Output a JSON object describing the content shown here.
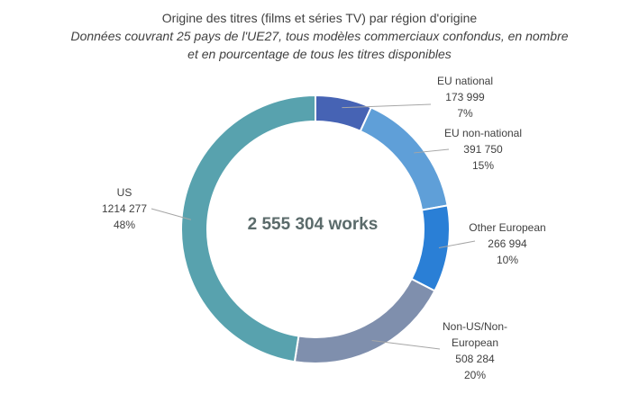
{
  "chart_data": {
    "type": "pie",
    "variant": "donut",
    "title": "Origine des titres (films et séries TV) par région d'origine",
    "subtitle_line1": "Données couvrant 25 pays de l'UE27, tous modèles commerciaux confondus, en nombre",
    "subtitle_line2": "et en pourcentage de tous les titres disponibles",
    "center_label": "2 555 304 works",
    "total": 2555304,
    "slices": [
      {
        "name": "EU national",
        "value": 173999,
        "value_label": "173 999",
        "percent_label": "7%",
        "color": "#4663b4"
      },
      {
        "name": "EU non-national",
        "value": 391750,
        "value_label": "391 750",
        "percent_label": "15%",
        "color": "#5f9fd8"
      },
      {
        "name": "Other European",
        "value": 266994,
        "value_label": "266 994",
        "percent_label": "10%",
        "color": "#2a7fd6"
      },
      {
        "name": "Non-US/Non-European",
        "value": 508284,
        "value_label": "508 284",
        "percent_label": "20%",
        "color": "#7f8fad"
      },
      {
        "name": "US",
        "value": 1214277,
        "value_label": "1214 277",
        "percent_label": "48%",
        "color": "#58a2ae"
      }
    ]
  }
}
